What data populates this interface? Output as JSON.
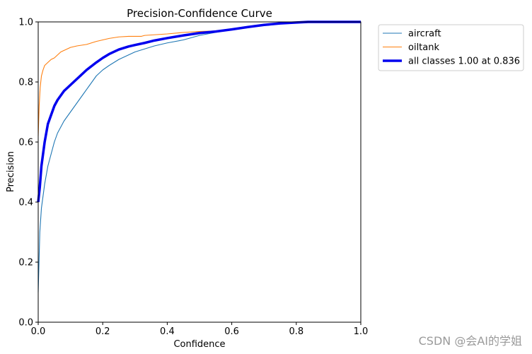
{
  "chart_data": {
    "type": "line",
    "title": "Precision-Confidence Curve",
    "xlabel": "Confidence",
    "ylabel": "Precision",
    "xlim": [
      0,
      1
    ],
    "ylim": [
      0,
      1
    ],
    "xticks": [
      "0.0",
      "0.2",
      "0.4",
      "0.6",
      "0.8",
      "1.0"
    ],
    "yticks": [
      "0.0",
      "0.2",
      "0.4",
      "0.6",
      "0.8",
      "1.0"
    ],
    "grid": false,
    "legend_position": "outside-top-right",
    "series": [
      {
        "name": "aircraft",
        "color": "#1f77b4",
        "x": [
          0.0,
          0.005,
          0.01,
          0.02,
          0.03,
          0.04,
          0.05,
          0.06,
          0.07,
          0.08,
          0.1,
          0.12,
          0.14,
          0.16,
          0.18,
          0.2,
          0.22,
          0.25,
          0.28,
          0.3,
          0.33,
          0.36,
          0.4,
          0.45,
          0.5,
          0.55,
          0.6,
          0.65,
          0.7,
          0.75,
          0.8,
          0.85,
          1.0
        ],
        "y": [
          0.1,
          0.3,
          0.38,
          0.46,
          0.52,
          0.56,
          0.6,
          0.63,
          0.65,
          0.67,
          0.7,
          0.73,
          0.76,
          0.79,
          0.82,
          0.84,
          0.855,
          0.875,
          0.89,
          0.9,
          0.91,
          0.92,
          0.93,
          0.94,
          0.955,
          0.965,
          0.975,
          0.985,
          0.99,
          0.995,
          0.998,
          1.0,
          1.0
        ]
      },
      {
        "name": "oiltank",
        "color": "#ff7f0e",
        "x": [
          0.0,
          0.003,
          0.006,
          0.01,
          0.015,
          0.02,
          0.03,
          0.04,
          0.05,
          0.06,
          0.07,
          0.08,
          0.1,
          0.12,
          0.15,
          0.18,
          0.2,
          0.22,
          0.25,
          0.28,
          0.32,
          0.33,
          0.4,
          0.45,
          0.5,
          0.55,
          0.6,
          0.65,
          0.7,
          0.75,
          0.8,
          0.85,
          1.0
        ],
        "y": [
          0.62,
          0.72,
          0.78,
          0.82,
          0.84,
          0.855,
          0.865,
          0.875,
          0.88,
          0.89,
          0.9,
          0.905,
          0.915,
          0.92,
          0.925,
          0.935,
          0.94,
          0.945,
          0.95,
          0.952,
          0.952,
          0.955,
          0.96,
          0.965,
          0.968,
          0.97,
          0.975,
          0.985,
          0.99,
          0.995,
          0.998,
          1.0,
          1.0
        ]
      },
      {
        "name": "all classes 1.00 at 0.836",
        "color": "#0000ee",
        "x": [
          0.0,
          0.005,
          0.01,
          0.02,
          0.03,
          0.04,
          0.05,
          0.06,
          0.08,
          0.1,
          0.12,
          0.15,
          0.18,
          0.2,
          0.22,
          0.25,
          0.28,
          0.3,
          0.33,
          0.36,
          0.4,
          0.45,
          0.5,
          0.55,
          0.6,
          0.65,
          0.7,
          0.75,
          0.8,
          0.836,
          0.85,
          1.0
        ],
        "y": [
          0.4,
          0.45,
          0.52,
          0.6,
          0.66,
          0.69,
          0.72,
          0.74,
          0.77,
          0.79,
          0.81,
          0.84,
          0.865,
          0.88,
          0.893,
          0.908,
          0.918,
          0.923,
          0.93,
          0.938,
          0.946,
          0.955,
          0.963,
          0.968,
          0.975,
          0.983,
          0.99,
          0.995,
          0.998,
          1.0,
          1.0,
          1.0
        ],
        "linewidth": "thick"
      }
    ]
  },
  "watermark": "CSDN @会AI的学姐"
}
